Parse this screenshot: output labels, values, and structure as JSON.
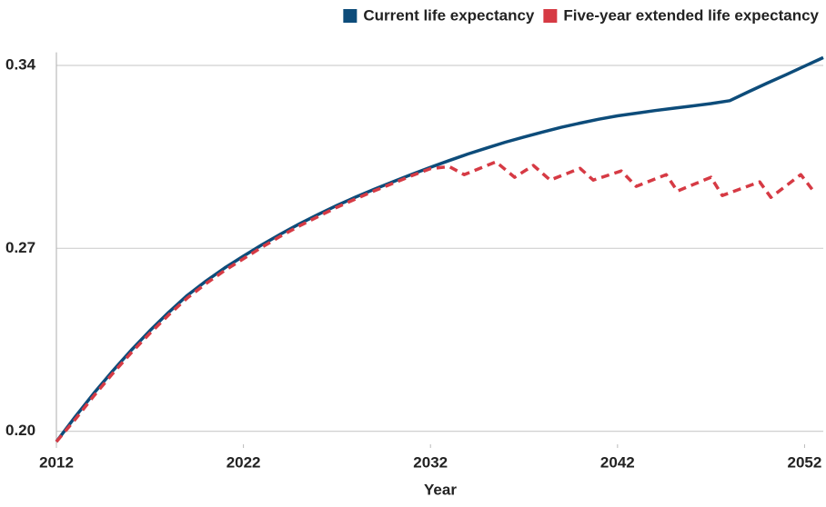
{
  "chart_data": {
    "type": "line",
    "xlabel": "Year",
    "xlim": [
      2012,
      2053
    ],
    "xticks": [
      2012,
      2022,
      2032,
      2042,
      2052
    ],
    "ylim": [
      0.195,
      0.345
    ],
    "yticks": [
      {
        "value": 0.2,
        "label": "0.20"
      },
      0.27,
      0.34
    ],
    "grid": true,
    "legend": "top-right",
    "series": [
      {
        "name": "Current life expectancy",
        "color": "#0d4c7a",
        "dash": false,
        "x": [
          2012,
          2013,
          2014,
          2015,
          2016,
          2017,
          2018,
          2019,
          2020,
          2021,
          2022,
          2023,
          2024,
          2025,
          2026,
          2027,
          2028,
          2029,
          2030,
          2031,
          2032,
          2033,
          2034,
          2035,
          2036,
          2037,
          2038,
          2039,
          2040,
          2041,
          2042,
          2043,
          2044,
          2045,
          2046,
          2047,
          2048,
          2049,
          2050,
          2051,
          2052,
          2053
        ],
        "values": [
          0.196,
          0.2055,
          0.2145,
          0.223,
          0.231,
          0.2385,
          0.2455,
          0.252,
          0.2575,
          0.2625,
          0.267,
          0.2714,
          0.2755,
          0.2794,
          0.283,
          0.2864,
          0.2896,
          0.2926,
          0.2955,
          0.2983,
          0.301,
          0.3036,
          0.3061,
          0.3084,
          0.3106,
          0.3126,
          0.3145,
          0.3163,
          0.3179,
          0.3194,
          0.3207,
          0.3217,
          0.3227,
          0.3236,
          0.3245,
          0.3254,
          0.3265,
          0.3299,
          0.3332,
          0.3364,
          0.3397,
          0.343
        ]
      },
      {
        "name": "Five-year extended life expectancy",
        "color": "#d63a44",
        "dash": true,
        "x": [
          2012,
          2013,
          2014,
          2015,
          2016,
          2017,
          2018,
          2019,
          2020,
          2021,
          2022,
          2023,
          2024,
          2025,
          2026,
          2027,
          2028,
          2029,
          2030,
          2031,
          2032,
          2033,
          2033.8,
          2035.5,
          2036.5,
          2037.5,
          2038.4,
          2040,
          2040.7,
          2042.2,
          2043,
          2044.6,
          2045.2,
          2047,
          2047.6,
          2049.6,
          2050.2,
          2051.8,
          2052.4
        ],
        "values": [
          0.196,
          0.2045,
          0.2135,
          0.222,
          0.23,
          0.2375,
          0.2445,
          0.251,
          0.2565,
          0.2615,
          0.266,
          0.2705,
          0.2747,
          0.2786,
          0.2822,
          0.2857,
          0.2889,
          0.292,
          0.2949,
          0.2978,
          0.3005,
          0.3013,
          0.2982,
          0.3031,
          0.2972,
          0.3017,
          0.2961,
          0.3006,
          0.2961,
          0.2996,
          0.2937,
          0.2982,
          0.2919,
          0.2972,
          0.2902,
          0.2954,
          0.2895,
          0.2982,
          0.2926
        ]
      }
    ]
  }
}
